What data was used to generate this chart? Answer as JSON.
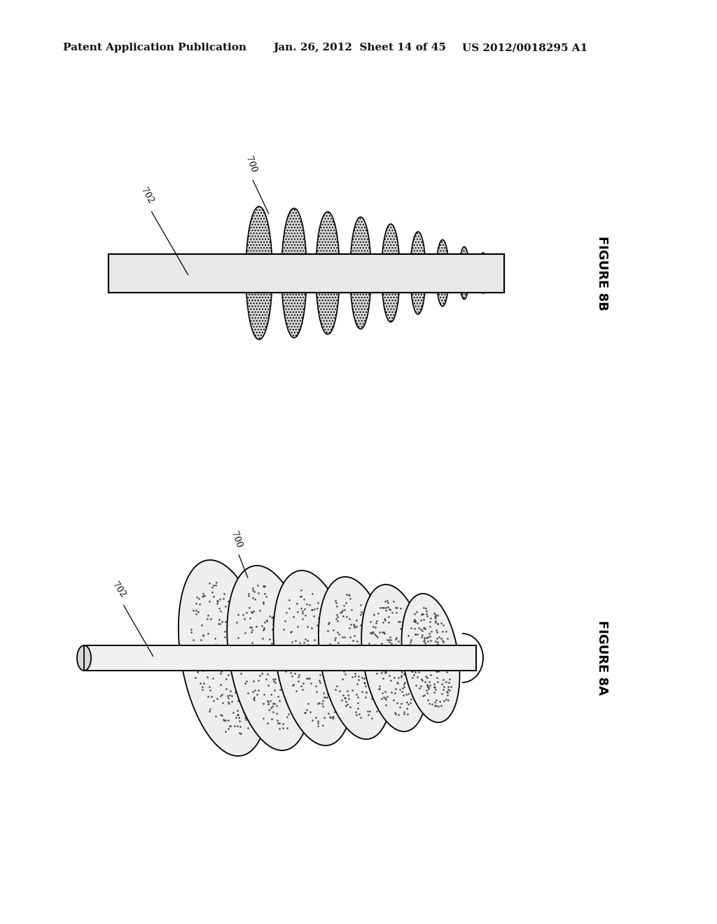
{
  "background_color": "#ffffff",
  "header_left": "Patent Application Publication",
  "header_mid": "Jan. 26, 2012  Sheet 14 of 45",
  "header_right": "US 2012/0018295 A1",
  "fig8b_label": "FIGURE 8B",
  "fig8a_label": "FIGURE 8A",
  "label_700": "700",
  "label_702": "702"
}
